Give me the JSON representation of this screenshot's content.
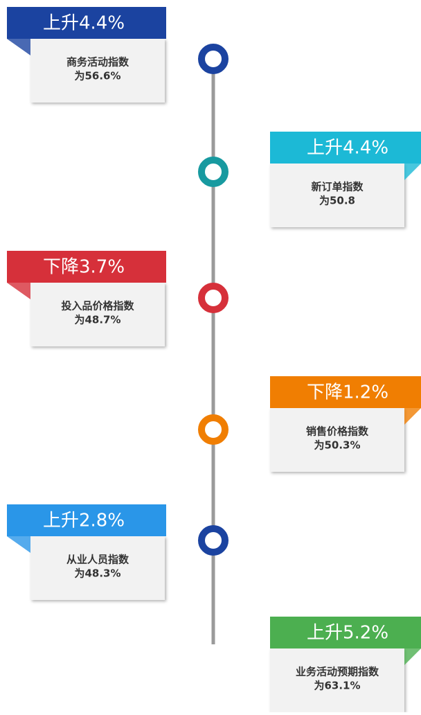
{
  "items": [
    {
      "header": "上升4.4%",
      "body": [
        "商务活动指数",
        "为56.6%"
      ],
      "color": "#1b43a0",
      "side": "left",
      "dot": "#1b43a0"
    },
    {
      "header": "上升4.4%",
      "body": [
        "新订单指数",
        "为50.8"
      ],
      "color": "#1cb9d6",
      "side": "right",
      "dot": "#189aa0"
    },
    {
      "header": "下降3.7%",
      "body": [
        "投入品价格指数",
        "为48.7%"
      ],
      "color": "#d6303a",
      "side": "left",
      "dot": "#d6303a"
    },
    {
      "header": "下降1.2%",
      "body": [
        "销售价格指数",
        "为50.3%"
      ],
      "color": "#f07e02",
      "side": "right",
      "dot": "#f07e02"
    },
    {
      "header": "上升2.8%",
      "body": [
        "从业人员指数",
        "为48.3%"
      ],
      "color": "#2a96e8",
      "side": "left",
      "dot": "#1b43a0"
    },
    {
      "header": "上升5.2%",
      "body": [
        "业务活动预期指数",
        "为63.1%"
      ],
      "color": "#4caf50",
      "side": "right",
      "dot": null
    }
  ]
}
